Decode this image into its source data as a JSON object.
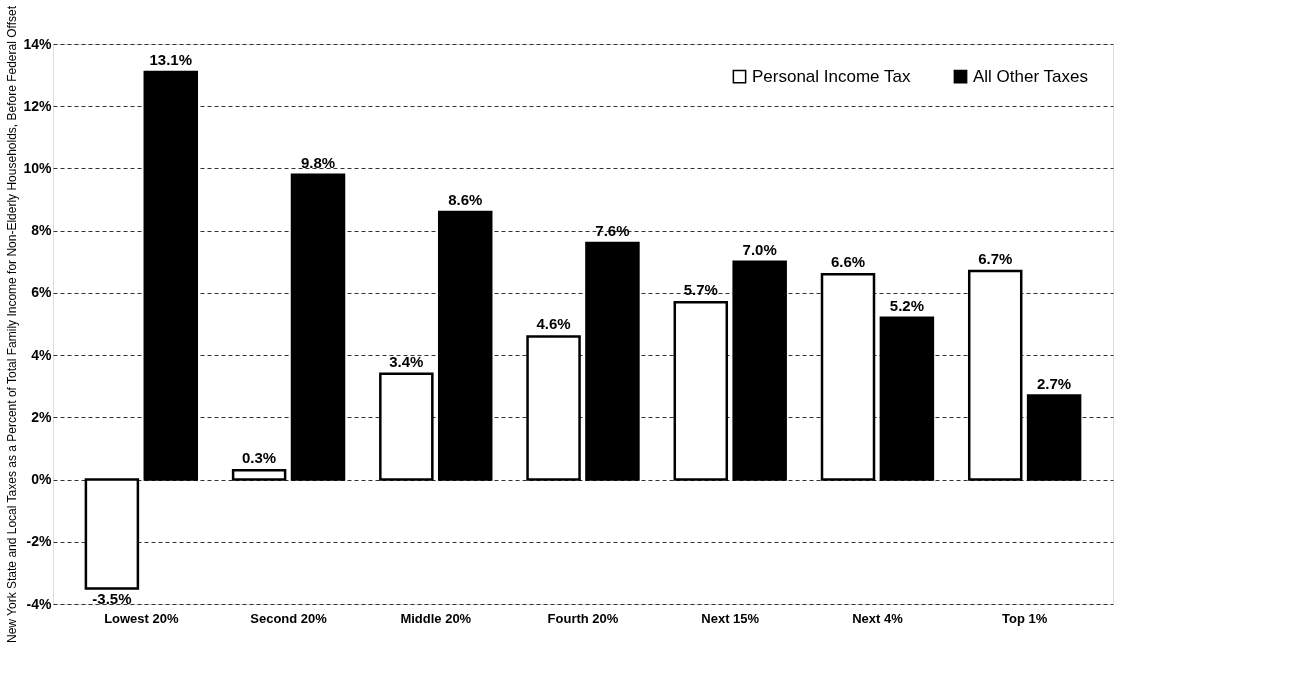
{
  "chart_data": {
    "type": "bar",
    "ylabel": "New York State and Local Taxes as a Percent of Total Family Income for Non-Elderly Households, Before Federal Offset",
    "categories": [
      "Lowest 20%",
      "Second 20%",
      "Middle 20%",
      "Fourth 20%",
      "Next 15%",
      "Next 4%",
      "Top 1%"
    ],
    "series": [
      {
        "name": "Personal Income Tax",
        "color": "#ffffff",
        "values": [
          -3.5,
          0.3,
          3.4,
          4.6,
          5.7,
          6.6,
          6.7
        ],
        "value_labels": [
          "-3.5%",
          "0.3%",
          "3.4%",
          "4.6%",
          "5.7%",
          "6.6%",
          "6.7%"
        ]
      },
      {
        "name": "All Other Taxes",
        "color": "#000000",
        "values": [
          13.1,
          9.8,
          8.6,
          7.6,
          7.0,
          5.2,
          2.7
        ],
        "value_labels": [
          "13.1%",
          "9.8%",
          "8.6%",
          "7.6%",
          "7.0%",
          "5.2%",
          "2.7%"
        ]
      }
    ],
    "ylim": [
      -4,
      14
    ],
    "yticks": [
      {
        "value": -4,
        "label": "-4%"
      },
      {
        "value": -2,
        "label": "-2%"
      },
      {
        "value": 0,
        "label": "0%"
      },
      {
        "value": 2,
        "label": "2%"
      },
      {
        "value": 4,
        "label": "4%"
      },
      {
        "value": 6,
        "label": "6%"
      },
      {
        "value": 8,
        "label": "8%"
      },
      {
        "value": 10,
        "label": "10%"
      },
      {
        "value": 12,
        "label": "12%"
      },
      {
        "value": 14,
        "label": "14%"
      }
    ],
    "grid": "y",
    "legend": "top right"
  }
}
